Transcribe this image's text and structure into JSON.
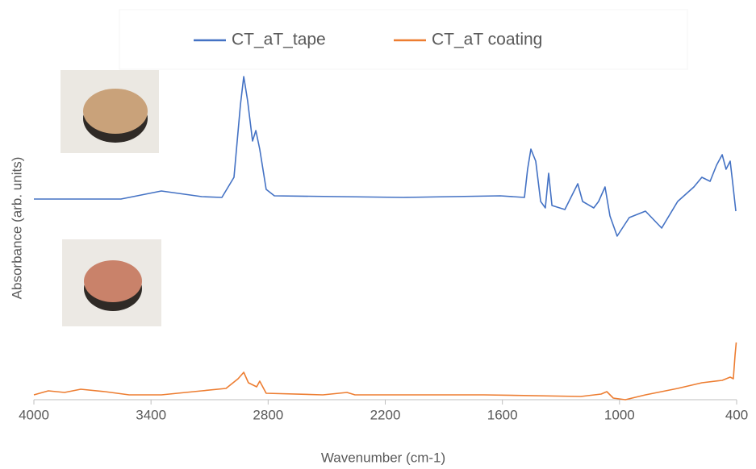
{
  "chart_data": {
    "type": "line",
    "x_label": "Wavenumber (cm-1)",
    "y_label": "Absorbance (arb. units)",
    "xlim": [
      4000,
      400
    ],
    "xticks": [
      4000,
      3400,
      2800,
      2200,
      1600,
      1000,
      400
    ],
    "ylim": [
      -1,
      100
    ],
    "legend_position": "top",
    "series": [
      {
        "name": "CT_aT_tape",
        "color": "#4472c4",
        "x": [
          4000,
          3554,
          3347,
          3140,
          3037,
          2975,
          2942,
          2925,
          2905,
          2880,
          2863,
          2843,
          2810,
          2768,
          2107,
          1611,
          1487,
          1471,
          1454,
          1429,
          1404,
          1380,
          1363,
          1346,
          1280,
          1214,
          1189,
          1132,
          1107,
          1074,
          1049,
          1012,
          950,
          867,
          784,
          702,
          619,
          578,
          536,
          503,
          474,
          454,
          433,
          421,
          404
        ],
        "values": [
          61.25,
          61.25,
          63.75,
          62,
          61.75,
          68,
          90.5,
          99.25,
          91.75,
          79.25,
          82.5,
          76.75,
          64.25,
          62.25,
          61.75,
          62.25,
          61.75,
          70.5,
          76.75,
          73,
          60.5,
          58.5,
          69.25,
          59.25,
          58,
          66,
          60.5,
          58.5,
          60.5,
          65,
          56,
          49.75,
          55.5,
          57.5,
          52.25,
          60.5,
          65,
          68,
          66.75,
          71.75,
          75,
          70.5,
          73,
          66.75,
          57.5
        ]
      },
      {
        "name": "CT_aT coating",
        "color": "#ed7d31",
        "x": [
          4000,
          3926,
          3843,
          3760,
          3636,
          3512,
          3347,
          3140,
          3016,
          2954,
          2925,
          2901,
          2859,
          2843,
          2810,
          2520,
          2396,
          2355,
          1694,
          1198,
          1094,
          1065,
          1032,
          970,
          867,
          702,
          578,
          474,
          433,
          417,
          408,
          402
        ],
        "values": [
          0.5,
          1.75,
          1.25,
          2.25,
          1.5,
          0.5,
          0.5,
          1.75,
          2.5,
          5.5,
          7.5,
          4.25,
          3,
          4.75,
          1,
          0.5,
          1.25,
          0.5,
          0.5,
          0,
          0.75,
          1.5,
          -0.5,
          -1,
          0.5,
          2.5,
          4.25,
          5,
          6,
          5.5,
          13,
          16.75
        ]
      }
    ]
  }
}
